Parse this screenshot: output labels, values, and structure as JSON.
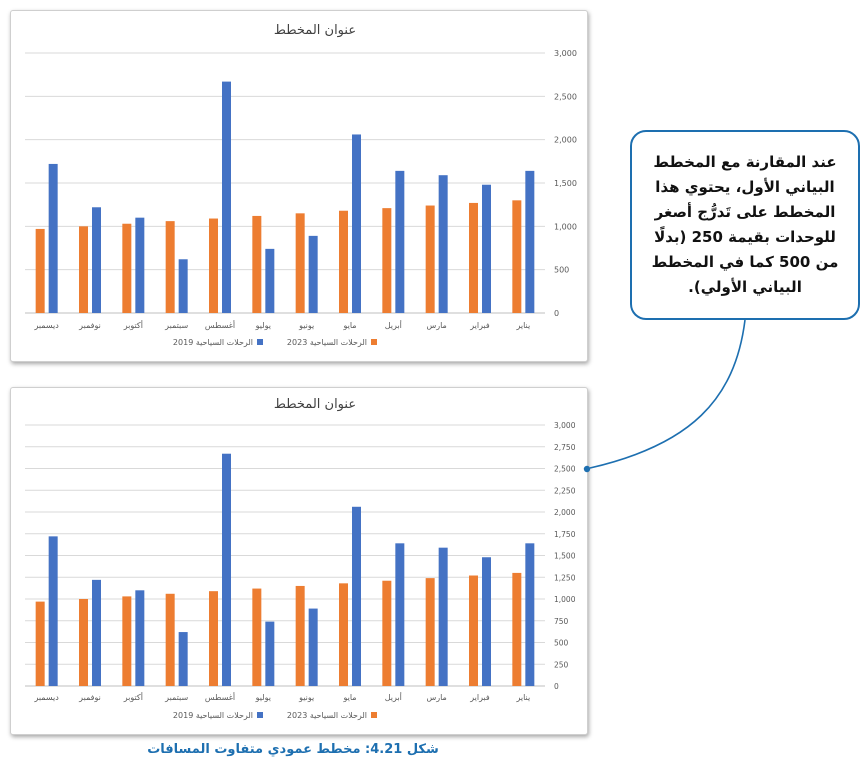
{
  "callout": {
    "text": "عند المقارنة مع المخطط البياني الأول، يحتوي هذا المخطط على تَدرُّج أصغر للوحدات بقيمة 250 (بدلًا من 500 كما في المخطط البياني الأولي)."
  },
  "caption": "شكل 4.21: مخطط عمودي متفاوت المسافات",
  "colors": {
    "series_2023": "#ED7D31",
    "series_2019": "#4472C4",
    "accent": "#1D6FB0"
  },
  "chart_data": [
    {
      "type": "bar",
      "title": "عنوان المخطط",
      "categories": [
        "يناير",
        "فبراير",
        "مارس",
        "أبريل",
        "مايو",
        "يونيو",
        "يوليو",
        "أغسطس",
        "سبتمبر",
        "أكتوبر",
        "نوفمبر",
        "ديسمبر"
      ],
      "series": [
        {
          "name": "الرحلات السياحية 2023",
          "color": "#ED7D31",
          "values": [
            1300,
            1270,
            1240,
            1210,
            1180,
            1150,
            1120,
            1090,
            1060,
            1030,
            1000,
            970
          ]
        },
        {
          "name": "الرحلات السياحية 2019",
          "color": "#4472C4",
          "values": [
            1640,
            1480,
            1590,
            1640,
            2060,
            890,
            740,
            2670,
            620,
            1100,
            1220,
            1720
          ]
        }
      ],
      "y_ticks": [
        "0",
        "500",
        "1,000",
        "1,500",
        "2,000",
        "2,500",
        "3,000"
      ],
      "ylim": [
        0,
        3000
      ],
      "ytick_step": 500,
      "y_axis_side": "right",
      "x_order": "right-to-left",
      "grid": true,
      "legend": "bottom"
    },
    {
      "type": "bar",
      "title": "عنوان المخطط",
      "categories": [
        "يناير",
        "فبراير",
        "مارس",
        "أبريل",
        "مايو",
        "يونيو",
        "يوليو",
        "أغسطس",
        "سبتمبر",
        "أكتوبر",
        "نوفمبر",
        "ديسمبر"
      ],
      "series": [
        {
          "name": "الرحلات السياحية 2023",
          "color": "#ED7D31",
          "values": [
            1300,
            1270,
            1240,
            1210,
            1180,
            1150,
            1120,
            1090,
            1060,
            1030,
            1000,
            970
          ]
        },
        {
          "name": "الرحلات السياحية 2019",
          "color": "#4472C4",
          "values": [
            1640,
            1480,
            1590,
            1640,
            2060,
            890,
            740,
            2670,
            620,
            1100,
            1220,
            1720
          ]
        }
      ],
      "y_ticks": [
        "0",
        "250",
        "500",
        "750",
        "1,000",
        "1,250",
        "1,500",
        "1,750",
        "2,000",
        "2,250",
        "2,500",
        "2,750",
        "3,000"
      ],
      "ylim": [
        0,
        3000
      ],
      "ytick_step": 250,
      "y_axis_side": "right",
      "x_order": "right-to-left",
      "grid": true,
      "legend": "bottom"
    }
  ]
}
